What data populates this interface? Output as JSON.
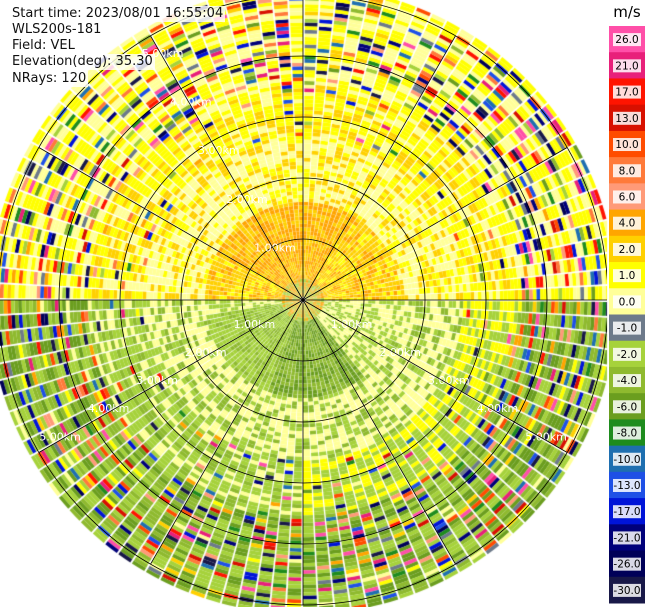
{
  "info": {
    "start_time": "Start time: 2023/08/01 16:55:04",
    "site": "WLS200s-181",
    "field": "Field: VEL",
    "elevation": "Elevation(deg): 35.30",
    "nrays": "NRays: 120"
  },
  "chart_data": {
    "type": "heatmap",
    "subtype": "polar-ppi",
    "field": "VEL",
    "units": "m/s",
    "rays": 120,
    "range_km": [
      0,
      5.0
    ],
    "range_ring_labels": [
      "1.00km",
      "2.00km",
      "3.00km",
      "4.00km",
      "5.00km"
    ],
    "radial_lines": 12,
    "colorbar": {
      "title": "m/s",
      "ticks": [
        "26.0",
        "21.0",
        "17.0",
        "13.0",
        "10.0",
        "8.0",
        "6.0",
        "4.0",
        "2.0",
        "1.0",
        "0.0",
        "-1.0",
        "-2.0",
        "-4.0",
        "-6.0",
        "-8.0",
        "-10.0",
        "-13.0",
        "-17.0",
        "-21.0",
        "-26.0",
        "-30.0"
      ],
      "colors": [
        "#ff4fa8",
        "#e8207a",
        "#ff1400",
        "#d81000",
        "#ff4c00",
        "#ff7a3a",
        "#ff9a78",
        "#ffa500",
        "#ffd000",
        "#ffff00",
        "#ffff99",
        "#6d7a8a",
        "#a6d23b",
        "#8fba2f",
        "#6b9e1f",
        "#1e8c1e",
        "#1e6fb0",
        "#1e50e6",
        "#0014d8",
        "#00007a",
        "#000058",
        "#181848"
      ]
    }
  }
}
